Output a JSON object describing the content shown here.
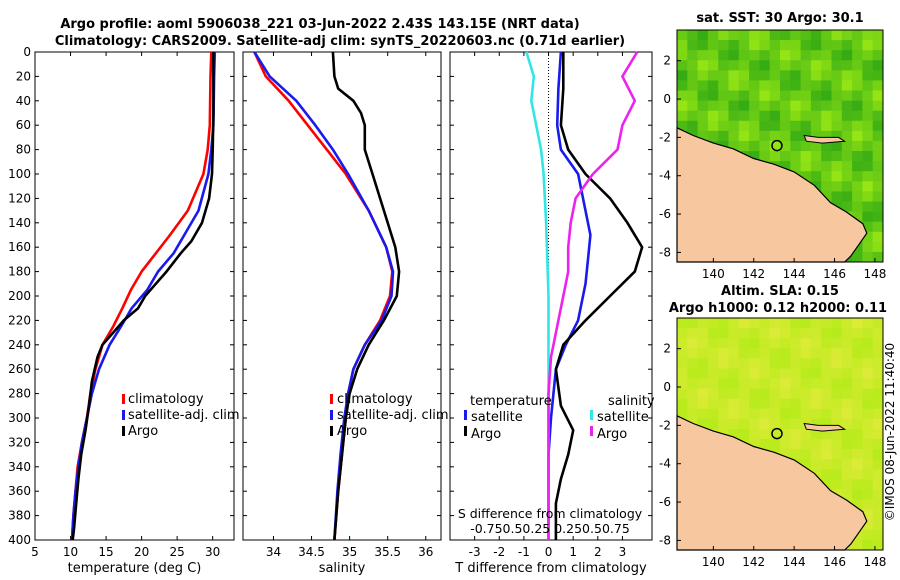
{
  "header": {
    "line1": "Argo profile: aoml 5906038_221 03-Jun-2022 2.43S 143.15E (NRT data)",
    "line2": "Climatology: CARS2009. Satellite-adj clim: synTS_20220603.nc (0.71d earlier)"
  },
  "side_label": "©IMOS 08-Jun-2022 11:40:40",
  "colors": {
    "climatology": "#ff0000",
    "satellite": "#1a1aee",
    "argo": "#000000",
    "sat_salinity": "#33e6e6",
    "argo_salinity": "#ee22ee",
    "land": "#f7c8a0"
  },
  "chart_data": [
    {
      "type": "line",
      "id": "temp",
      "xlabel": "temperature (deg C)",
      "ylabel": "",
      "xlim": [
        5,
        33
      ],
      "ylim": [
        400,
        0
      ],
      "xticks": [
        "5",
        "10",
        "15",
        "20",
        "25",
        "30"
      ],
      "xtick_values": [
        5,
        10,
        15,
        20,
        25,
        30
      ],
      "yticks": [
        "0",
        "20",
        "40",
        "60",
        "80",
        "100",
        "120",
        "140",
        "160",
        "180",
        "200",
        "220",
        "240",
        "260",
        "280",
        "300",
        "320",
        "340",
        "360",
        "380",
        "400"
      ],
      "ytick_values": [
        0,
        20,
        40,
        60,
        80,
        100,
        120,
        140,
        160,
        180,
        200,
        220,
        240,
        260,
        280,
        300,
        320,
        340,
        360,
        380,
        400
      ],
      "legend": [
        "climatology",
        "satellite-adj. clim",
        "Argo"
      ],
      "series": [
        {
          "name": "climatology",
          "color": "#ff0000",
          "points": [
            [
              29.8,
              0
            ],
            [
              29.7,
              20
            ],
            [
              29.6,
              60
            ],
            [
              29.3,
              80
            ],
            [
              28.7,
              100
            ],
            [
              26.5,
              130
            ],
            [
              24,
              150
            ],
            [
              22,
              165
            ],
            [
              20,
              180
            ],
            [
              18.5,
              195
            ],
            [
              17.3,
              210
            ],
            [
              16,
              225
            ],
            [
              14.5,
              240
            ],
            [
              13.5,
              260
            ],
            [
              12.8,
              280
            ],
            [
              12.3,
              300
            ],
            [
              11.6,
              320
            ],
            [
              11,
              340
            ],
            [
              10.7,
              360
            ],
            [
              10.4,
              380
            ],
            [
              10.2,
              400
            ]
          ]
        },
        {
          "name": "satellite-adj. clim",
          "color": "#1a1aee",
          "points": [
            [
              30.3,
              0
            ],
            [
              30.2,
              20
            ],
            [
              30.1,
              60
            ],
            [
              29.8,
              80
            ],
            [
              29.4,
              100
            ],
            [
              28,
              130
            ],
            [
              26,
              150
            ],
            [
              24.5,
              165
            ],
            [
              22.3,
              180
            ],
            [
              20.8,
              195
            ],
            [
              18.6,
              210
            ],
            [
              17.1,
              225
            ],
            [
              15.5,
              240
            ],
            [
              14,
              260
            ],
            [
              13,
              280
            ],
            [
              12.3,
              300
            ],
            [
              11.6,
              320
            ],
            [
              11.1,
              340
            ],
            [
              10.7,
              360
            ],
            [
              10.4,
              380
            ],
            [
              10.2,
              400
            ]
          ]
        },
        {
          "name": "Argo",
          "color": "#000000",
          "points": [
            [
              30.1,
              0
            ],
            [
              30.1,
              20
            ],
            [
              30.1,
              50
            ],
            [
              30,
              80
            ],
            [
              29.9,
              100
            ],
            [
              29.5,
              120
            ],
            [
              28.5,
              140
            ],
            [
              27,
              155
            ],
            [
              25.5,
              165
            ],
            [
              23.5,
              180
            ],
            [
              22,
              190
            ],
            [
              20.5,
              200
            ],
            [
              19.5,
              210
            ],
            [
              17.5,
              220
            ],
            [
              16,
              230
            ],
            [
              14.5,
              240
            ],
            [
              13.8,
              250
            ],
            [
              13,
              270
            ],
            [
              12.6,
              290
            ],
            [
              12.1,
              310
            ],
            [
              11.5,
              330
            ],
            [
              11.1,
              350
            ],
            [
              10.8,
              370
            ],
            [
              10.5,
              390
            ],
            [
              10.3,
              400
            ]
          ]
        }
      ]
    },
    {
      "type": "line",
      "id": "sal",
      "xlabel": "salinity",
      "xlim": [
        33.6,
        36.2
      ],
      "ylim": [
        400,
        0
      ],
      "xticks": [
        "34",
        "34.5",
        "35",
        "35.5",
        "36"
      ],
      "xtick_values": [
        34,
        34.5,
        35,
        35.5,
        36
      ],
      "legend": [
        "climatology",
        "satellite-adj. clim",
        "Argo"
      ],
      "series": [
        {
          "name": "climatology",
          "color": "#ff0000",
          "points": [
            [
              33.75,
              0
            ],
            [
              33.9,
              20
            ],
            [
              34.2,
              40
            ],
            [
              34.45,
              60
            ],
            [
              34.7,
              80
            ],
            [
              34.95,
              100
            ],
            [
              35.25,
              130
            ],
            [
              35.48,
              160
            ],
            [
              35.56,
              180
            ],
            [
              35.53,
              200
            ],
            [
              35.4,
              220
            ],
            [
              35.2,
              240
            ],
            [
              35.05,
              260
            ],
            [
              34.98,
              280
            ],
            [
              34.95,
              300
            ],
            [
              34.9,
              330
            ],
            [
              34.85,
              360
            ],
            [
              34.8,
              400
            ]
          ]
        },
        {
          "name": "satellite-adj. clim",
          "color": "#1a1aee",
          "points": [
            [
              33.75,
              0
            ],
            [
              33.95,
              20
            ],
            [
              34.3,
              40
            ],
            [
              34.55,
              60
            ],
            [
              34.78,
              80
            ],
            [
              34.98,
              100
            ],
            [
              35.25,
              130
            ],
            [
              35.48,
              160
            ],
            [
              35.57,
              180
            ],
            [
              35.55,
              200
            ],
            [
              35.42,
              220
            ],
            [
              35.2,
              240
            ],
            [
              35.05,
              260
            ],
            [
              34.98,
              280
            ],
            [
              34.93,
              300
            ],
            [
              34.88,
              330
            ],
            [
              34.84,
              360
            ],
            [
              34.8,
              400
            ]
          ]
        },
        {
          "name": "Argo",
          "color": "#000000",
          "points": [
            [
              34.78,
              0
            ],
            [
              34.8,
              20
            ],
            [
              34.85,
              30
            ],
            [
              35.05,
              40
            ],
            [
              35.15,
              50
            ],
            [
              35.2,
              60
            ],
            [
              35.2,
              80
            ],
            [
              35.3,
              100
            ],
            [
              35.4,
              120
            ],
            [
              35.5,
              140
            ],
            [
              35.6,
              160
            ],
            [
              35.65,
              180
            ],
            [
              35.62,
              200
            ],
            [
              35.45,
              220
            ],
            [
              35.25,
              240
            ],
            [
              35.1,
              260
            ],
            [
              35,
              280
            ],
            [
              34.95,
              300
            ],
            [
              34.9,
              330
            ],
            [
              34.85,
              360
            ],
            [
              34.8,
              400
            ]
          ]
        }
      ]
    },
    {
      "type": "line",
      "id": "diff",
      "xlabel": "T difference from climatology",
      "top_label": "S difference from climatology",
      "top_ticks": "-0.750.50.25 0.250.50.75",
      "xlim": [
        -4,
        4.2
      ],
      "ylim": [
        400,
        0
      ],
      "xticks": [
        "-3",
        "-2",
        "-1",
        "0",
        "1",
        "2",
        "3"
      ],
      "xtick_values": [
        -3,
        -2,
        -1,
        0,
        1,
        2,
        3
      ],
      "legend_left": {
        "title": "temperature",
        "items": [
          "satellite",
          "Argo"
        ]
      },
      "legend_right": {
        "title": "salinity",
        "items": [
          "satellite",
          "Argo"
        ]
      },
      "series": [
        {
          "name": "satellite T",
          "color": "#1a1aee",
          "points": [
            [
              0.5,
              0
            ],
            [
              0.4,
              30
            ],
            [
              0.35,
              60
            ],
            [
              0.5,
              80
            ],
            [
              1.2,
              100
            ],
            [
              1.5,
              130
            ],
            [
              1.7,
              150
            ],
            [
              1.6,
              170
            ],
            [
              1.5,
              190
            ],
            [
              1.2,
              220
            ],
            [
              0.7,
              240
            ],
            [
              0.3,
              260
            ],
            [
              0.1,
              300
            ],
            [
              0,
              330
            ],
            [
              0,
              360
            ],
            [
              0,
              400
            ]
          ]
        },
        {
          "name": "Argo T",
          "color": "#000000",
          "points": [
            [
              0.6,
              0
            ],
            [
              0.6,
              30
            ],
            [
              0.5,
              60
            ],
            [
              0.8,
              80
            ],
            [
              1.5,
              100
            ],
            [
              2.5,
              120
            ],
            [
              3.2,
              140
            ],
            [
              3.8,
              160
            ],
            [
              3.5,
              180
            ],
            [
              2.5,
              200
            ],
            [
              1.5,
              220
            ],
            [
              0.6,
              240
            ],
            [
              0.3,
              260
            ],
            [
              0.5,
              290
            ],
            [
              1,
              310
            ],
            [
              0.8,
              330
            ],
            [
              0.5,
              350
            ],
            [
              0.3,
              370
            ],
            [
              0.3,
              400
            ]
          ]
        },
        {
          "name": "satellite S",
          "color": "#33e6e6",
          "points": [
            [
              -0.9,
              0
            ],
            [
              -0.6,
              20
            ],
            [
              -0.7,
              40
            ],
            [
              -0.5,
              60
            ],
            [
              -0.3,
              80
            ],
            [
              -0.2,
              100
            ],
            [
              -0.1,
              140
            ],
            [
              0,
              200
            ],
            [
              0,
              260
            ],
            [
              0,
              320
            ],
            [
              0,
              400
            ]
          ]
        },
        {
          "name": "Argo S",
          "color": "#ee22ee",
          "points": [
            [
              3.6,
              0
            ],
            [
              3,
              20
            ],
            [
              3.5,
              40
            ],
            [
              3,
              60
            ],
            [
              2.8,
              80
            ],
            [
              1.8,
              100
            ],
            [
              1.1,
              120
            ],
            [
              0.9,
              140
            ],
            [
              0.8,
              160
            ],
            [
              0.8,
              180
            ],
            [
              0.6,
              200
            ],
            [
              0.4,
              220
            ],
            [
              0.1,
              250
            ],
            [
              0,
              280
            ],
            [
              0,
              320
            ],
            [
              0,
              360
            ],
            [
              0,
              400
            ]
          ]
        }
      ]
    },
    {
      "type": "heatmap",
      "id": "sst",
      "title": "sat. SST: 30 Argo: 30.1",
      "xlim": [
        138.2,
        148.4
      ],
      "ylim": [
        -8.5,
        3.6
      ],
      "xticks": [
        "140",
        "142",
        "144",
        "146",
        "148"
      ],
      "xtick_values": [
        140,
        142,
        144,
        146,
        148
      ],
      "yticks": [
        "2",
        "0",
        "-2",
        "-4",
        "-6",
        "-8"
      ],
      "ytick_values": [
        2,
        0,
        -2,
        -4,
        -6,
        -8
      ],
      "marker": [
        143.15,
        -2.43
      ]
    },
    {
      "type": "heatmap",
      "id": "sla",
      "title": "Altim. SLA: 0.15",
      "subtitle": "Argo h1000: 0.12 h2000: 0.11",
      "xlim": [
        138.2,
        148.4
      ],
      "ylim": [
        -8.5,
        3.6
      ],
      "xticks": [
        "140",
        "142",
        "144",
        "146",
        "148"
      ],
      "xtick_values": [
        140,
        142,
        144,
        146,
        148
      ],
      "yticks": [
        "2",
        "0",
        "-2",
        "-4",
        "-6",
        "-8"
      ],
      "ytick_values": [
        2,
        0,
        -2,
        -4,
        -6,
        -8
      ],
      "marker": [
        143.15,
        -2.43
      ]
    }
  ]
}
